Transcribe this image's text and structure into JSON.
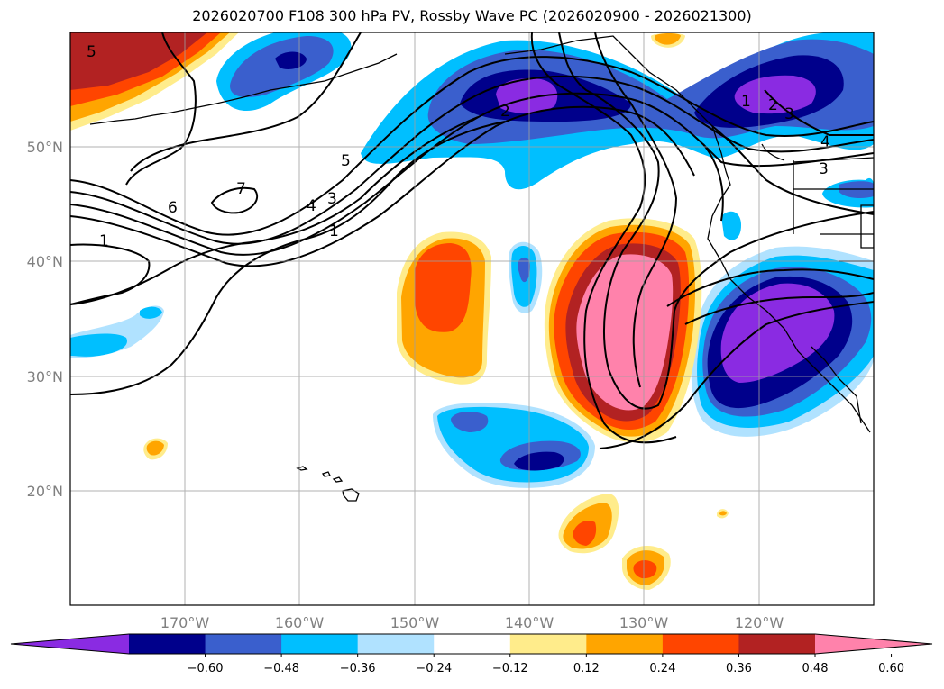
{
  "title": "2026020700 F108 300 hPa PV, Rossby Wave PC (2026020900 - 2026021300)",
  "map": {
    "lon_range": [
      -180,
      -110
    ],
    "lat_range": [
      10,
      60
    ],
    "lat_labels": [
      "50°N",
      "40°N",
      "30°N",
      "20°N"
    ],
    "lon_labels": [
      "170°W",
      "160°W",
      "150°W",
      "140°W",
      "130°W",
      "120°W"
    ],
    "gridlines": true
  },
  "colorbar": {
    "colors": [
      "#8a2be2",
      "#00008b",
      "#3a5fcd",
      "#00bfff",
      "#b0e2ff",
      "#ffffff",
      "#ffec8b",
      "#ffa500",
      "#ff4500",
      "#b22222",
      "#ff82ab"
    ],
    "labels": [
      "-0.60",
      "-0.48",
      "-0.36",
      "-0.24",
      "-0.12",
      "0.12",
      "0.24",
      "0.36",
      "0.48",
      "0.60"
    ],
    "extend": "both"
  },
  "contour_labels": [
    "5",
    "7",
    "6",
    "1",
    "5",
    "4",
    "3",
    "1",
    "2",
    "1",
    "2",
    "3",
    "4",
    "3"
  ]
}
